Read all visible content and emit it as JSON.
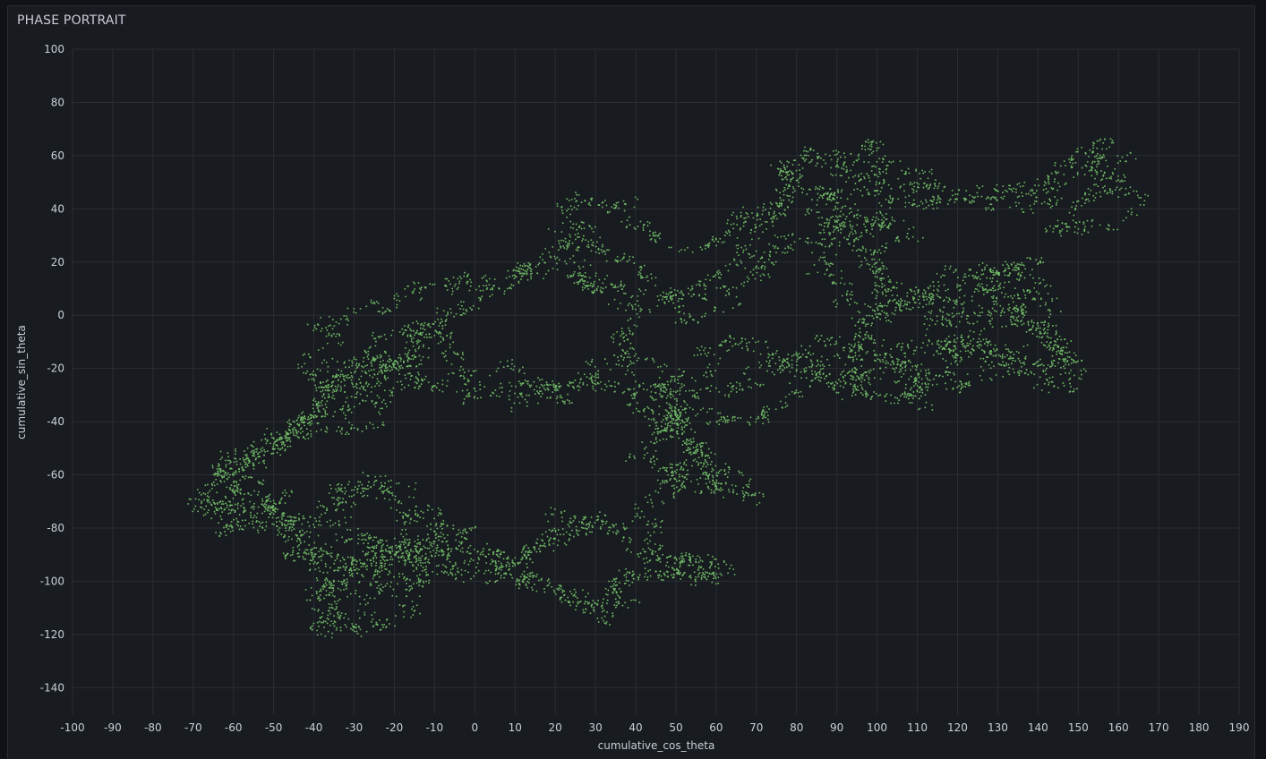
{
  "panel": {
    "title": "PHASE PORTRAIT"
  },
  "chart_data": {
    "type": "scatter",
    "title": "PHASE PORTRAIT",
    "xlabel": "cumulative_cos_theta",
    "ylabel": "cumulative_sin_theta",
    "xlim": [
      -100,
      190
    ],
    "ylim": [
      -150,
      100
    ],
    "x_ticks": [
      -100,
      -90,
      -80,
      -70,
      -60,
      -50,
      -40,
      -30,
      -20,
      -10,
      0,
      10,
      20,
      30,
      40,
      50,
      60,
      70,
      80,
      90,
      100,
      110,
      120,
      130,
      140,
      150,
      160,
      170,
      180,
      190
    ],
    "y_ticks": [
      100,
      80,
      60,
      40,
      20,
      0,
      -20,
      -40,
      -60,
      -80,
      -100,
      -120,
      -140
    ],
    "x_tick_labels": [
      "-100",
      "-90",
      "-80",
      "-70",
      "-60",
      "-50",
      "-40",
      "-30",
      "-20",
      "-10",
      "0",
      "10",
      "20",
      "30",
      "40",
      "50",
      "60",
      "70",
      "80",
      "90",
      "100",
      "110",
      "120",
      "130",
      "140",
      "150",
      "160",
      "170",
      "180",
      "190"
    ],
    "y_tick_labels": [
      "100",
      "80",
      "60",
      "40",
      "20",
      "0",
      "-20",
      "-40",
      "-60",
      "-80",
      "-100",
      "-120",
      "-140"
    ],
    "grid": true,
    "series_color": "#73bf69",
    "path_waypoints": [
      [
        -70,
        -70
      ],
      [
        -62,
        -78
      ],
      [
        -52,
        -72
      ],
      [
        -45,
        -82
      ],
      [
        -40,
        -95
      ],
      [
        -35,
        -100
      ],
      [
        -38,
        -118
      ],
      [
        -28,
        -112
      ],
      [
        -20,
        -100
      ],
      [
        -15,
        -92
      ],
      [
        -25,
        -85
      ],
      [
        -32,
        -70
      ],
      [
        -22,
        -65
      ],
      [
        -15,
        -80
      ],
      [
        -10,
        -90
      ],
      [
        0,
        -92
      ],
      [
        10,
        -97
      ],
      [
        20,
        -104
      ],
      [
        25,
        -108
      ],
      [
        32,
        -112
      ],
      [
        35,
        -100
      ],
      [
        45,
        -97
      ],
      [
        55,
        -100
      ],
      [
        62,
        -97
      ],
      [
        55,
        -93
      ],
      [
        42,
        -90
      ],
      [
        35,
        -80
      ],
      [
        20,
        -75
      ],
      [
        12,
        -90
      ],
      [
        8,
        -100
      ],
      [
        0,
        -95
      ],
      [
        -10,
        -88
      ],
      [
        -22,
        -92
      ],
      [
        -35,
        -96
      ],
      [
        -42,
        -86
      ],
      [
        -50,
        -74
      ],
      [
        -62,
        -62
      ],
      [
        -58,
        -50
      ],
      [
        -48,
        -45
      ],
      [
        -40,
        -35
      ],
      [
        -30,
        -20
      ],
      [
        -22,
        -15
      ],
      [
        -15,
        -25
      ],
      [
        -5,
        -30
      ],
      [
        5,
        -28
      ],
      [
        15,
        -30
      ],
      [
        22,
        -25
      ],
      [
        30,
        -22
      ],
      [
        38,
        -28
      ],
      [
        45,
        -38
      ],
      [
        50,
        -42
      ],
      [
        55,
        -50
      ],
      [
        50,
        -60
      ],
      [
        58,
        -64
      ],
      [
        65,
        -63
      ],
      [
        60,
        -55
      ],
      [
        52,
        -46
      ],
      [
        46,
        -40
      ],
      [
        44,
        -30
      ],
      [
        40,
        -20
      ],
      [
        38,
        -5
      ],
      [
        35,
        5
      ],
      [
        30,
        10
      ],
      [
        28,
        22
      ],
      [
        25,
        32
      ],
      [
        22,
        40
      ],
      [
        30,
        45
      ],
      [
        38,
        38
      ],
      [
        45,
        30
      ],
      [
        52,
        25
      ],
      [
        60,
        30
      ],
      [
        70,
        38
      ],
      [
        78,
        42
      ],
      [
        85,
        45
      ],
      [
        90,
        40
      ],
      [
        95,
        30
      ],
      [
        100,
        35
      ],
      [
        105,
        45
      ],
      [
        110,
        55
      ],
      [
        112,
        50
      ],
      [
        120,
        48
      ],
      [
        128,
        48
      ],
      [
        135,
        46
      ],
      [
        142,
        44
      ],
      [
        150,
        50
      ],
      [
        155,
        58
      ],
      [
        160,
        55
      ],
      [
        163,
        42
      ],
      [
        155,
        35
      ],
      [
        145,
        32
      ],
      [
        150,
        40
      ],
      [
        160,
        50
      ],
      [
        155,
        65
      ],
      [
        148,
        55
      ],
      [
        140,
        45
      ],
      [
        130,
        42
      ],
      [
        120,
        44
      ],
      [
        110,
        40
      ],
      [
        100,
        45
      ],
      [
        95,
        50
      ],
      [
        90,
        55
      ],
      [
        82,
        62
      ],
      [
        78,
        60
      ],
      [
        80,
        50
      ],
      [
        75,
        40
      ],
      [
        70,
        30
      ],
      [
        65,
        20
      ],
      [
        60,
        15
      ],
      [
        55,
        10
      ],
      [
        45,
        5
      ],
      [
        40,
        10
      ],
      [
        35,
        15
      ],
      [
        28,
        12
      ],
      [
        20,
        18
      ],
      [
        12,
        15
      ],
      [
        5,
        10
      ],
      [
        -2,
        16
      ],
      [
        -10,
        10
      ],
      [
        -20,
        5
      ],
      [
        -30,
        2
      ],
      [
        -35,
        -5
      ],
      [
        -40,
        -15
      ],
      [
        -42,
        -22
      ],
      [
        -35,
        -28
      ],
      [
        -28,
        -20
      ],
      [
        -22,
        -20
      ],
      [
        -15,
        -10
      ],
      [
        -10,
        -5
      ],
      [
        -18,
        -25
      ],
      [
        -25,
        -32
      ],
      [
        -30,
        -40
      ],
      [
        -40,
        -40
      ],
      [
        -50,
        -48
      ],
      [
        -58,
        -55
      ],
      [
        -65,
        -65
      ],
      [
        -60,
        -72
      ],
      [
        -48,
        -70
      ],
      [
        -40,
        -85
      ],
      [
        -32,
        -92
      ],
      [
        -25,
        -90
      ],
      [
        -20,
        -98
      ],
      [
        -30,
        -100
      ],
      [
        -40,
        -98
      ],
      [
        -35,
        -110
      ],
      [
        -30,
        -118
      ],
      [
        -20,
        -112
      ],
      [
        -15,
        -105
      ],
      [
        -12,
        -95
      ],
      [
        -18,
        -85
      ],
      [
        -28,
        -80
      ],
      [
        -35,
        -90
      ],
      [
        -30,
        -95
      ],
      [
        -22,
        -92
      ],
      [
        -15,
        -88
      ],
      [
        -10,
        -82
      ],
      [
        5,
        -90
      ],
      [
        12,
        -96
      ],
      [
        18,
        -102
      ],
      [
        28,
        -110
      ],
      [
        35,
        -108
      ],
      [
        40,
        -100
      ],
      [
        45,
        -95
      ],
      [
        50,
        -95
      ],
      [
        58,
        -98
      ],
      [
        63,
        -96
      ],
      [
        52,
        -90
      ],
      [
        45,
        -85
      ],
      [
        40,
        -75
      ],
      [
        30,
        -78
      ],
      [
        22,
        -80
      ],
      [
        15,
        -85
      ],
      [
        10,
        -92
      ],
      [
        0,
        -88
      ],
      [
        -5,
        -80
      ],
      [
        -15,
        -70
      ],
      [
        -25,
        -62
      ],
      [
        -35,
        -66
      ],
      [
        -42,
        -75
      ],
      [
        -50,
        -80
      ],
      [
        -58,
        -78
      ],
      [
        -65,
        -72
      ],
      [
        -68,
        -65
      ],
      [
        -60,
        -58
      ],
      [
        -50,
        -52
      ],
      [
        -45,
        -42
      ],
      [
        -38,
        -30
      ],
      [
        -30,
        -25
      ],
      [
        -25,
        -18
      ],
      [
        -20,
        -10
      ],
      [
        -12,
        -5
      ],
      [
        -5,
        -15
      ],
      [
        2,
        -22
      ],
      [
        10,
        -18
      ],
      [
        12,
        -28
      ],
      [
        20,
        -32
      ],
      [
        25,
        -28
      ],
      [
        32,
        -20
      ],
      [
        40,
        -18
      ],
      [
        48,
        -25
      ],
      [
        55,
        -28
      ],
      [
        62,
        -30
      ],
      [
        70,
        -25
      ],
      [
        75,
        -20
      ],
      [
        82,
        -15
      ],
      [
        88,
        -22
      ],
      [
        92,
        -28
      ],
      [
        98,
        -20
      ],
      [
        102,
        -12
      ],
      [
        108,
        -15
      ],
      [
        112,
        -25
      ],
      [
        118,
        -20
      ],
      [
        125,
        -10
      ],
      [
        130,
        -5
      ],
      [
        135,
        0
      ],
      [
        140,
        5
      ],
      [
        132,
        10
      ],
      [
        125,
        8
      ],
      [
        120,
        2
      ],
      [
        115,
        -5
      ],
      [
        120,
        -12
      ],
      [
        128,
        -15
      ],
      [
        135,
        -20
      ],
      [
        142,
        -22
      ],
      [
        150,
        -24
      ],
      [
        145,
        -15
      ],
      [
        140,
        -10
      ],
      [
        132,
        -2
      ],
      [
        128,
        5
      ],
      [
        135,
        12
      ],
      [
        140,
        18
      ],
      [
        132,
        15
      ],
      [
        125,
        20
      ],
      [
        118,
        12
      ],
      [
        112,
        5
      ],
      [
        105,
        2
      ],
      [
        100,
        10
      ],
      [
        102,
        22
      ],
      [
        105,
        30
      ],
      [
        100,
        38
      ],
      [
        92,
        35
      ],
      [
        88,
        28
      ],
      [
        85,
        18
      ],
      [
        92,
        10
      ],
      [
        98,
        0
      ],
      [
        100,
        -8
      ],
      [
        95,
        -15
      ],
      [
        88,
        -10
      ],
      [
        82,
        -18
      ],
      [
        78,
        -28
      ],
      [
        72,
        -35
      ],
      [
        68,
        -42
      ],
      [
        62,
        -40
      ],
      [
        58,
        -35
      ],
      [
        52,
        -32
      ],
      [
        48,
        -42
      ],
      [
        42,
        -50
      ],
      [
        38,
        -55
      ],
      [
        45,
        -58
      ],
      [
        50,
        -68
      ],
      [
        55,
        -60
      ],
      [
        62,
        -65
      ],
      [
        68,
        -68
      ],
      [
        65,
        -58
      ],
      [
        58,
        -52
      ],
      [
        52,
        -48
      ],
      [
        48,
        -38
      ],
      [
        50,
        -28
      ],
      [
        55,
        -18
      ],
      [
        60,
        -12
      ],
      [
        65,
        -8
      ],
      [
        72,
        -15
      ],
      [
        80,
        -20
      ],
      [
        88,
        -25
      ],
      [
        95,
        -22
      ],
      [
        102,
        -20
      ],
      [
        108,
        -18
      ],
      [
        112,
        -28
      ],
      [
        105,
        -32
      ],
      [
        98,
        -28
      ],
      [
        92,
        -20
      ],
      [
        95,
        -10
      ],
      [
        100,
        -2
      ],
      [
        108,
        5
      ],
      [
        115,
        10
      ],
      [
        122,
        12
      ],
      [
        130,
        16
      ],
      [
        138,
        10
      ],
      [
        142,
        2
      ],
      [
        135,
        -8
      ],
      [
        128,
        -12
      ],
      [
        120,
        -8
      ],
      [
        112,
        -12
      ],
      [
        108,
        -22
      ],
      [
        112,
        -30
      ],
      [
        118,
        -25
      ],
      [
        125,
        -22
      ],
      [
        130,
        -18
      ],
      [
        138,
        -15
      ],
      [
        145,
        -20
      ],
      [
        152,
        -22
      ],
      [
        146,
        -12
      ],
      [
        140,
        -8
      ],
      [
        135,
        -2
      ],
      [
        130,
        2
      ],
      [
        125,
        -2
      ],
      [
        120,
        0
      ],
      [
        115,
        2
      ],
      [
        110,
        8
      ],
      [
        104,
        15
      ],
      [
        100,
        20
      ],
      [
        96,
        28
      ],
      [
        92,
        38
      ],
      [
        88,
        45
      ],
      [
        82,
        50
      ],
      [
        78,
        55
      ],
      [
        84,
        60
      ],
      [
        92,
        62
      ],
      [
        100,
        66
      ],
      [
        104,
        60
      ],
      [
        100,
        50
      ],
      [
        95,
        45
      ],
      [
        90,
        42
      ],
      [
        85,
        35
      ],
      [
        80,
        28
      ],
      [
        75,
        22
      ],
      [
        70,
        15
      ],
      [
        65,
        10
      ],
      [
        60,
        5
      ],
      [
        55,
        0
      ],
      [
        50,
        5
      ],
      [
        45,
        12
      ],
      [
        40,
        18
      ],
      [
        35,
        25
      ],
      [
        30,
        30
      ],
      [
        25,
        28
      ],
      [
        20,
        22
      ],
      [
        15,
        18
      ],
      [
        8,
        12
      ],
      [
        2,
        5
      ],
      [
        -5,
        0
      ],
      [
        -12,
        -5
      ],
      [
        -18,
        -12
      ],
      [
        -22,
        -22
      ],
      [
        -28,
        -28
      ],
      [
        -32,
        -35
      ],
      [
        -38,
        -38
      ],
      [
        -44,
        -44
      ],
      [
        -52,
        -50
      ],
      [
        -56,
        -58
      ],
      [
        -62,
        -68
      ],
      [
        -70,
        -70
      ]
    ]
  }
}
